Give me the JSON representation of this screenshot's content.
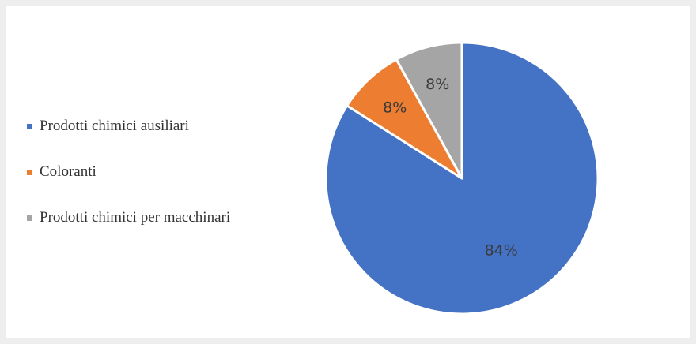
{
  "chart_data": {
    "type": "pie",
    "title": "",
    "categories": [
      "Prodotti chimici ausiliari",
      "Coloranti",
      "Prodotti chimici per macchinari"
    ],
    "values": [
      84,
      8,
      8
    ],
    "labels": [
      "84%",
      "8%",
      "8%"
    ],
    "colors": [
      "#4472c4",
      "#ed7d31",
      "#a5a5a5"
    ],
    "start_angle_deg": 0,
    "direction": "clockwise",
    "legend_position": "left"
  }
}
